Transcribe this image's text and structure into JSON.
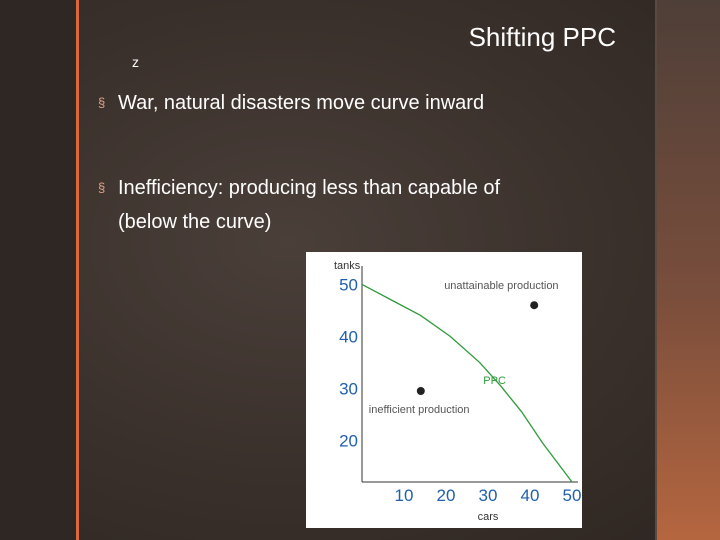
{
  "slide": {
    "title": "Shifting PPC",
    "logo_glyph": "z",
    "bullet_glyph": "§",
    "bullets": [
      {
        "text": "War, natural disasters move curve inward"
      },
      {
        "text_line1": "Inefficiency: producing less than capable of",
        "text_line2": "(below the curve)"
      }
    ]
  },
  "colors": {
    "background": "#3a302b",
    "accent_orange": "#d9683f",
    "title_text": "#ffffff",
    "curve_green": "#2e9b3a",
    "tick_blue": "#1f5fae"
  },
  "chart_data": {
    "type": "line",
    "ylabel": "tanks",
    "xlabel": "cars",
    "x_ticks": [
      10,
      20,
      30,
      40,
      50
    ],
    "y_ticks": [
      20,
      30,
      40,
      50
    ],
    "xlim": [
      0,
      50
    ],
    "ylim": [
      12,
      52
    ],
    "series": [
      {
        "name": "PPC",
        "x": [
          0,
          7,
          14,
          21,
          28,
          33,
          38,
          43,
          50
        ],
        "y": [
          50,
          47,
          44,
          40,
          35,
          30.5,
          25.5,
          19.5,
          12
        ]
      }
    ],
    "points": [
      {
        "label": "unattainable production",
        "x": 41,
        "y": 46
      },
      {
        "label": "inefficient production",
        "x": 14,
        "y": 29.5
      }
    ],
    "grid": false
  }
}
